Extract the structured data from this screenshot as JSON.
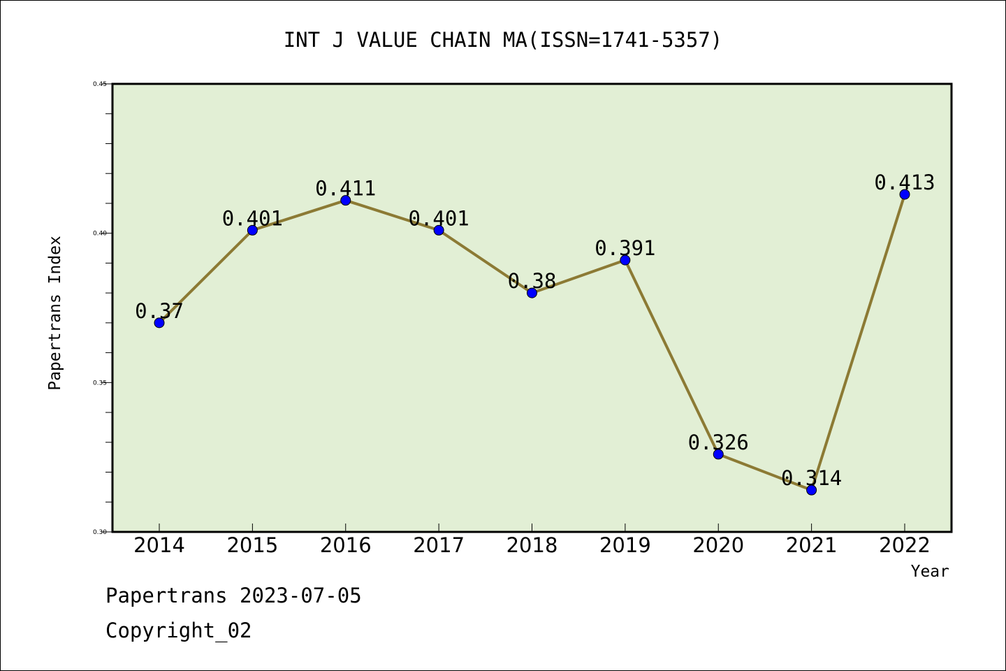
{
  "chart_data": {
    "type": "line",
    "title": "INT J VALUE CHAIN MA(ISSN=1741-5357)",
    "xlabel": "Year",
    "ylabel": "Papertrans Index",
    "categories": [
      "2014",
      "2015",
      "2016",
      "2017",
      "2018",
      "2019",
      "2020",
      "2021",
      "2022"
    ],
    "series": [
      {
        "values": [
          0.37,
          0.401,
          0.411,
          0.401,
          0.38,
          0.391,
          0.326,
          0.314,
          0.413
        ],
        "labels": [
          "0.37",
          "0.401",
          "0.411",
          "0.401",
          "0.38",
          "0.391",
          "0.326",
          "0.314",
          "0.413"
        ]
      }
    ],
    "ylim": [
      0.3,
      0.45
    ],
    "yticks": [
      "0.30",
      "0.35",
      "0.40",
      "0.45"
    ],
    "grid": false,
    "colors": {
      "plot_background": "#e2efd5",
      "line": "#8c7a34",
      "marker": "#0000ff"
    }
  },
  "footer": {
    "line1": "Papertrans 2023-07-05",
    "line2": "Copyright_02"
  }
}
